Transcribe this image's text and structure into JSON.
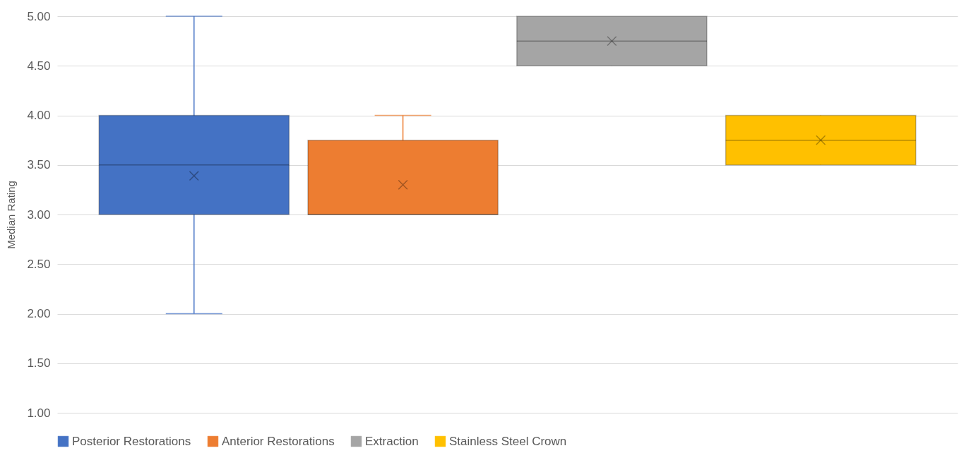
{
  "chart_data": {
    "type": "box",
    "ylabel": "Median Rating",
    "categories": [
      null
    ],
    "series": [
      {
        "name": "Posterior Restorations",
        "color": "#4472c4",
        "boxes": [
          {
            "low": 2,
            "q1": 3,
            "median": 3.5,
            "q3": 4,
            "high": 5,
            "mean": 3.39
          }
        ]
      },
      {
        "name": "Anterior Restorations",
        "color": "#ed7d31",
        "boxes": [
          {
            "low": 3,
            "q1": 3,
            "median": 3,
            "q3": 3.75,
            "high": 4,
            "mean": 3.3
          }
        ]
      },
      {
        "name": "Extraction",
        "color": "#a5a5a5",
        "boxes": [
          {
            "low": 4.5,
            "q1": 4.5,
            "median": 4.75,
            "q3": 5,
            "high": 5,
            "mean": 4.75
          }
        ]
      },
      {
        "name": "Stainless Steel Crown",
        "color": "#ffc000",
        "boxes": [
          {
            "low": 3.5,
            "q1": 3.5,
            "median": 3.75,
            "q3": 4,
            "high": 4,
            "mean": 3.75
          }
        ]
      }
    ],
    "ylim": [
      1,
      5
    ],
    "yticks": [
      {
        "value": 1,
        "label": "1.00"
      },
      {
        "value": 1.5,
        "label": "1.50"
      },
      {
        "value": 2,
        "label": "2.00"
      },
      {
        "value": 2.5,
        "label": "2.50"
      },
      {
        "value": 3,
        "label": "3.00"
      },
      {
        "value": 3.5,
        "label": "3.50"
      },
      {
        "value": 4,
        "label": "4.00"
      },
      {
        "value": 4.5,
        "label": "4.50"
      },
      {
        "value": 5,
        "label": "5.00"
      }
    ],
    "grid": "y",
    "legend": "bottom",
    "marker": "cross"
  }
}
